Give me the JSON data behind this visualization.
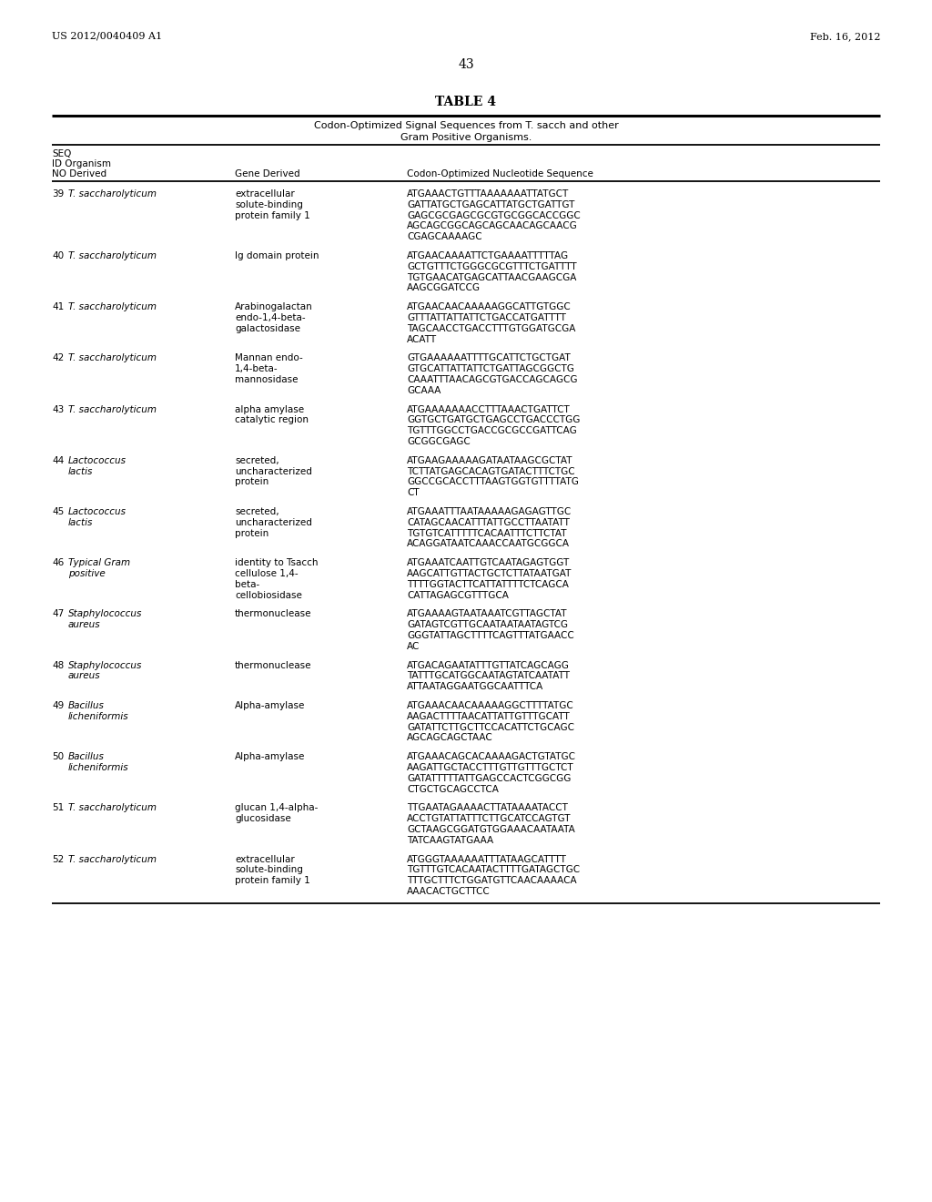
{
  "header_left": "US 2012/0040409 A1",
  "header_right": "Feb. 16, 2012",
  "page_number": "43",
  "table_title": "TABLE 4",
  "table_subtitle1": "Codon-Optimized Signal Sequences from T. sacch and other",
  "table_subtitle2": "Gram Positive Organisms.",
  "rows": [
    {
      "seq": "39",
      "organism": [
        "T. saccharolyticum"
      ],
      "gene": [
        "extracellular",
        "solute-binding",
        "protein family 1"
      ],
      "sequence": [
        "ATGAAACTGTTTAAAAAAATTATGCT",
        "GATTATGCTGAGCATTATGCTGATTGT",
        "GAGCGCGAGCGCGTGCGGCACCGGC",
        "AGCAGCGGCAGCAGCAACAGCAACG",
        "CGAGCAAAAGC"
      ]
    },
    {
      "seq": "40",
      "organism": [
        "T. saccharolyticum"
      ],
      "gene": [
        "Ig domain protein"
      ],
      "sequence": [
        "ATGAACAAAATTCTGAAAATTTTTAG",
        "GCTGTTTCTGGGCGCGTTTCTGATTTT",
        "TGTGAACATGAGCATTAACGAAGCGA",
        "AAGCGGATCCG"
      ]
    },
    {
      "seq": "41",
      "organism": [
        "T. saccharolyticum"
      ],
      "gene": [
        "Arabinogalactan",
        "endo-1,4-beta-",
        "galactosidase"
      ],
      "sequence": [
        "ATGAACAACAAAAAGGCATTGTGGC",
        "GTTTATTATTATTCTGACCATGATTTT",
        "TAGCAACCTGACCTTTGTGGATGCGA",
        "ACATT"
      ]
    },
    {
      "seq": "42",
      "organism": [
        "T. saccharolyticum"
      ],
      "gene": [
        "Mannan endo-",
        "1,4-beta-",
        "mannosidase"
      ],
      "sequence": [
        "GTGAAAAAATTTTGCATTCTGCTGAT",
        "GTGCATTATTATTCTGATTAGCGGCTG",
        "CAAATTTAACAGCGTGACCAGCAGCG",
        "GCAAA"
      ]
    },
    {
      "seq": "43",
      "organism": [
        "T. saccharolyticum"
      ],
      "gene": [
        "alpha amylase",
        "catalytic region"
      ],
      "sequence": [
        "ATGAAAAAAACCTTTAAACTGATTCT",
        "GGTGCTGATGCTGAGCCTGACCCTGG",
        "TGTTTGGCCTGACCGCGCCGATTCAG",
        "GCGGCGAGC"
      ]
    },
    {
      "seq": "44",
      "organism": [
        "Lactococcus",
        "lactis"
      ],
      "gene": [
        "secreted,",
        "uncharacterized",
        "protein"
      ],
      "sequence": [
        "ATGAAGAAAAAGATAATAAGCGCTAT",
        "TCTTATGAGCACAGTGATACTTTCTGC",
        "GGCCGCACCTTTAAGTGGTGTTTTATG",
        "CT"
      ]
    },
    {
      "seq": "45",
      "organism": [
        "Lactococcus",
        "lactis"
      ],
      "gene": [
        "secreted,",
        "uncharacterized",
        "protein"
      ],
      "sequence": [
        "ATGAAATTTAATAAAAAGAGAGTTGC",
        "CATAGCAACATTTATTGCCTTAATATT",
        "TGTGTCATTTTTCACAATTTCTTCTAT",
        "ACAGGATAATCAAACCAATGCGGCA"
      ]
    },
    {
      "seq": "46",
      "organism": [
        "Typical Gram",
        "positive"
      ],
      "gene": [
        "identity to Tsacch",
        "cellulose 1,4-",
        "beta-",
        "cellobiosidase"
      ],
      "sequence": [
        "ATGAAATCAATTGTCAATAGAGTGGT",
        "AAGCATTGTTACTGCTCTTATAATGAT",
        "TTTTGGTACTTCATTATTTTCTCAGCA",
        "CATTAGAGCGTTTGCA"
      ]
    },
    {
      "seq": "47",
      "organism": [
        "Staphylococcus",
        "aureus"
      ],
      "gene": [
        "thermonuclease"
      ],
      "sequence": [
        "ATGAAAAGTAATAAATCGTTAGCTAT",
        "GATAGTCGTTGCAATAATAATAGTCG",
        "GGGTATTAGCTTTTCAGTTTATGAACC",
        "AC"
      ]
    },
    {
      "seq": "48",
      "organism": [
        "Staphylococcus",
        "aureus"
      ],
      "gene": [
        "thermonuclease"
      ],
      "sequence": [
        "ATGACAGAATATTTGTTATCAGCAGG",
        "TATTTGCATGGCAATAGTATCAATATT",
        "ATTAATAGGAATGGCAATTTCA"
      ]
    },
    {
      "seq": "49",
      "organism": [
        "Bacillus",
        "licheniformis"
      ],
      "gene": [
        "Alpha-amylase"
      ],
      "sequence": [
        "ATGAAACAACAAAAAGGCTTTTATGC",
        "AAGACTTTTAACATTATTGTTTGCATT",
        "GATATTCTTGCTTCCACATTCTGCAGC",
        "AGCAGCAGCTAAC"
      ]
    },
    {
      "seq": "50",
      "organism": [
        "Bacillus",
        "licheniformis"
      ],
      "gene": [
        "Alpha-amylase"
      ],
      "sequence": [
        "ATGAAACAGCACAAAAGACTGTATGC",
        "AAGATTGCTACCTTTGTTGTTTGCTCT",
        "GATATTTTTATTGAGCCACTCGGCGG",
        "CTGCTGCAGCCTCA"
      ]
    },
    {
      "seq": "51",
      "organism": [
        "T. saccharolyticum"
      ],
      "gene": [
        "glucan 1,4-alpha-",
        "glucosidase"
      ],
      "sequence": [
        "TTGAATAGAAAACTTATAAAATACCT",
        "ACCTGTATTATTTCTTGCATCCAGTGT",
        "GCTAAGCGGATGTGGAAACAATAATA",
        "TATCAAGTATGAAA"
      ]
    },
    {
      "seq": "52",
      "organism": [
        "T. saccharolyticum"
      ],
      "gene": [
        "extracellular",
        "solute-binding",
        "protein family 1"
      ],
      "sequence": [
        "ATGGGTAAAAAATTTATAAGCATTTT",
        "TGTTTGTCACAATACTTTTGATAGCTGC",
        "TTTGCTTTCTGGATGTTCAACAAAACA",
        "AAACACTGCTTCC"
      ]
    }
  ]
}
